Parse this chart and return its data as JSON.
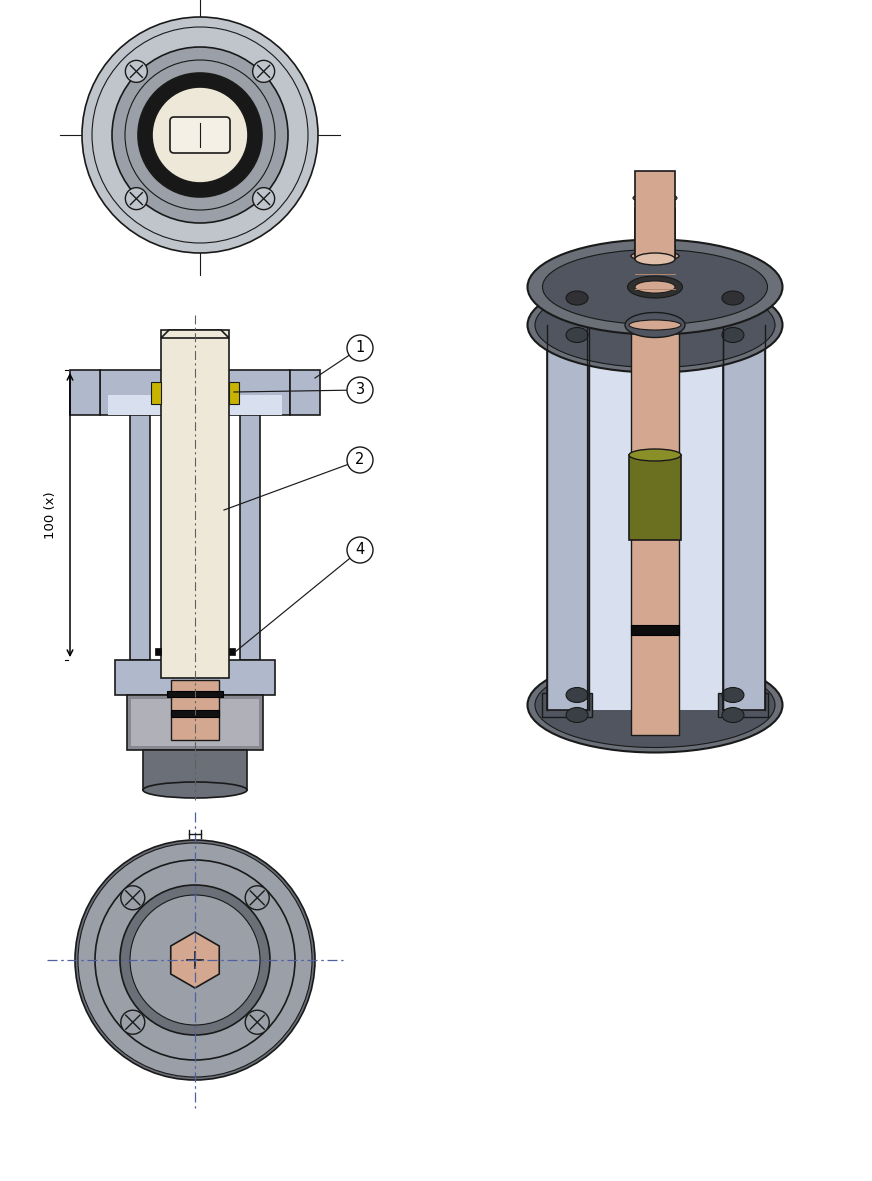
{
  "bg_color": "#ffffff",
  "flange_gray": "#9a9fa8",
  "flange_light": "#c0c5cc",
  "flange_dark": "#6a6f78",
  "flange_darker": "#505560",
  "housing_blue": "#b0b8cc",
  "housing_light": "#c8d0e0",
  "housing_vlight": "#d8e0f0",
  "shaft_cream": "#eee8d8",
  "shaft_ivory": "#f5f0e5",
  "shaft_copper": "#d4a890",
  "shaft_copper_dark": "#c09878",
  "green_seal": "#6b7020",
  "green_seal_light": "#8a8f28",
  "green_seal_top": "#a0a840",
  "yellow_seal": "#c8b400",
  "black_ring": "#181818",
  "silver_mid": "#888890",
  "silver_light": "#b0b0b8",
  "line_col": "#1a1a1a",
  "dim_col": "#000000",
  "callout_col": "#000000",
  "label_1": "1",
  "label_2": "2",
  "label_3": "3",
  "label_4": "4",
  "dim_label": "100 (x)"
}
